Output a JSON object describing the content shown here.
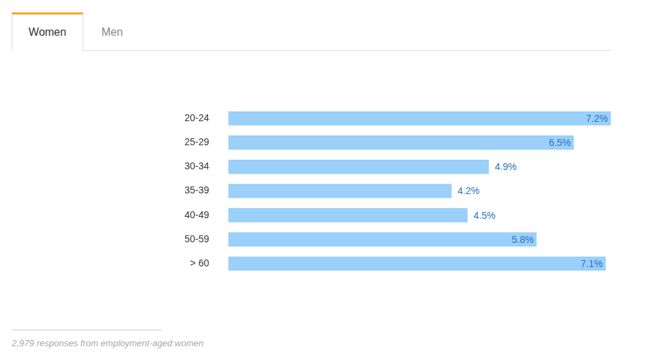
{
  "tabs": [
    {
      "label": "Women",
      "selected": true
    },
    {
      "label": "Men",
      "selected": false
    }
  ],
  "footnote": "2,979 responses from employment-aged women",
  "chart_data": {
    "type": "bar",
    "orientation": "horizontal",
    "categories": [
      "20-24",
      "25-29",
      "30-34",
      "35-39",
      "40-49",
      "50-59",
      "> 60"
    ],
    "values": [
      7.2,
      6.5,
      4.9,
      4.2,
      4.5,
      5.8,
      7.1
    ],
    "value_labels": [
      "7.2%",
      "6.5%",
      "4.9%",
      "4.2%",
      "4.5%",
      "5.8%",
      "7.1%"
    ],
    "data_labels": true,
    "color": "#9ad0fa",
    "xlim": [
      0,
      7.2
    ],
    "grid": false,
    "tick_labels": "y"
  }
}
